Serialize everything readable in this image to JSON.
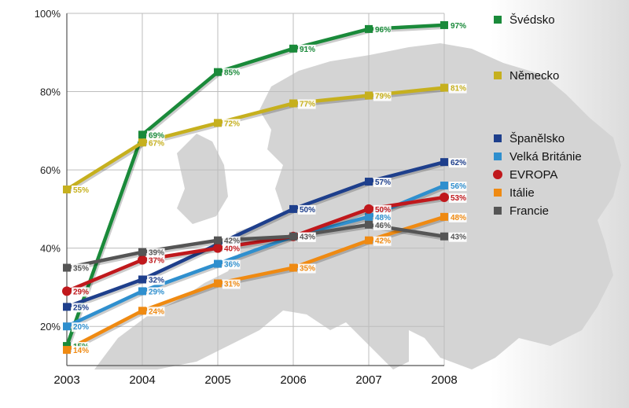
{
  "chart_data": {
    "type": "line",
    "title": "",
    "xlabel": "",
    "ylabel": "",
    "x": [
      "2003",
      "2004",
      "2005",
      "2006",
      "2007",
      "2008"
    ],
    "yticks": [
      "20%",
      "40%",
      "60%",
      "80%",
      "100%"
    ],
    "ylim": [
      10,
      100
    ],
    "grid": true,
    "legend_position": "right",
    "series": [
      {
        "name": "Švédsko",
        "color": "#1a8a3a",
        "marker": "square",
        "values": [
          15,
          69,
          85,
          91,
          96,
          97
        ],
        "labels": [
          "15%",
          "69%",
          "85%",
          "91%",
          "96%",
          "97%"
        ]
      },
      {
        "name": "Německo",
        "color": "#c6b01e",
        "marker": "square",
        "values": [
          55,
          67,
          72,
          77,
          79,
          81
        ],
        "labels": [
          "55%",
          "67%",
          "72%",
          "77%",
          "79%",
          "81%"
        ]
      },
      {
        "name": "Španělsko",
        "color": "#1e3f8c",
        "marker": "square",
        "values": [
          25,
          32,
          41,
          50,
          57,
          62
        ],
        "labels": [
          "25%",
          "32%",
          "41%",
          "50%",
          "57%",
          "62%"
        ]
      },
      {
        "name": "Velká Británie",
        "color": "#2f8fce",
        "marker": "square",
        "values": [
          20,
          29,
          36,
          43,
          48,
          56
        ],
        "labels": [
          "20%",
          "29%",
          "36%",
          "43%",
          "48%",
          "56%"
        ]
      },
      {
        "name": "EVROPA",
        "color": "#c0181c",
        "marker": "circle",
        "values": [
          29,
          37,
          40,
          43,
          50,
          53
        ],
        "labels": [
          "29%",
          "37%",
          "40%",
          "43%",
          "50%",
          "53%"
        ]
      },
      {
        "name": "Itálie",
        "color": "#ef8a12",
        "marker": "square",
        "values": [
          14,
          24,
          31,
          35,
          42,
          48
        ],
        "labels": [
          "14%",
          "24%",
          "31%",
          "35%",
          "42%",
          "48%"
        ]
      },
      {
        "name": "Francie",
        "color": "#555555",
        "marker": "square",
        "values": [
          35,
          39,
          42,
          43,
          46,
          43
        ],
        "labels": [
          "35%",
          "39%",
          "42%",
          "43%",
          "46%",
          "43%"
        ]
      }
    ]
  }
}
